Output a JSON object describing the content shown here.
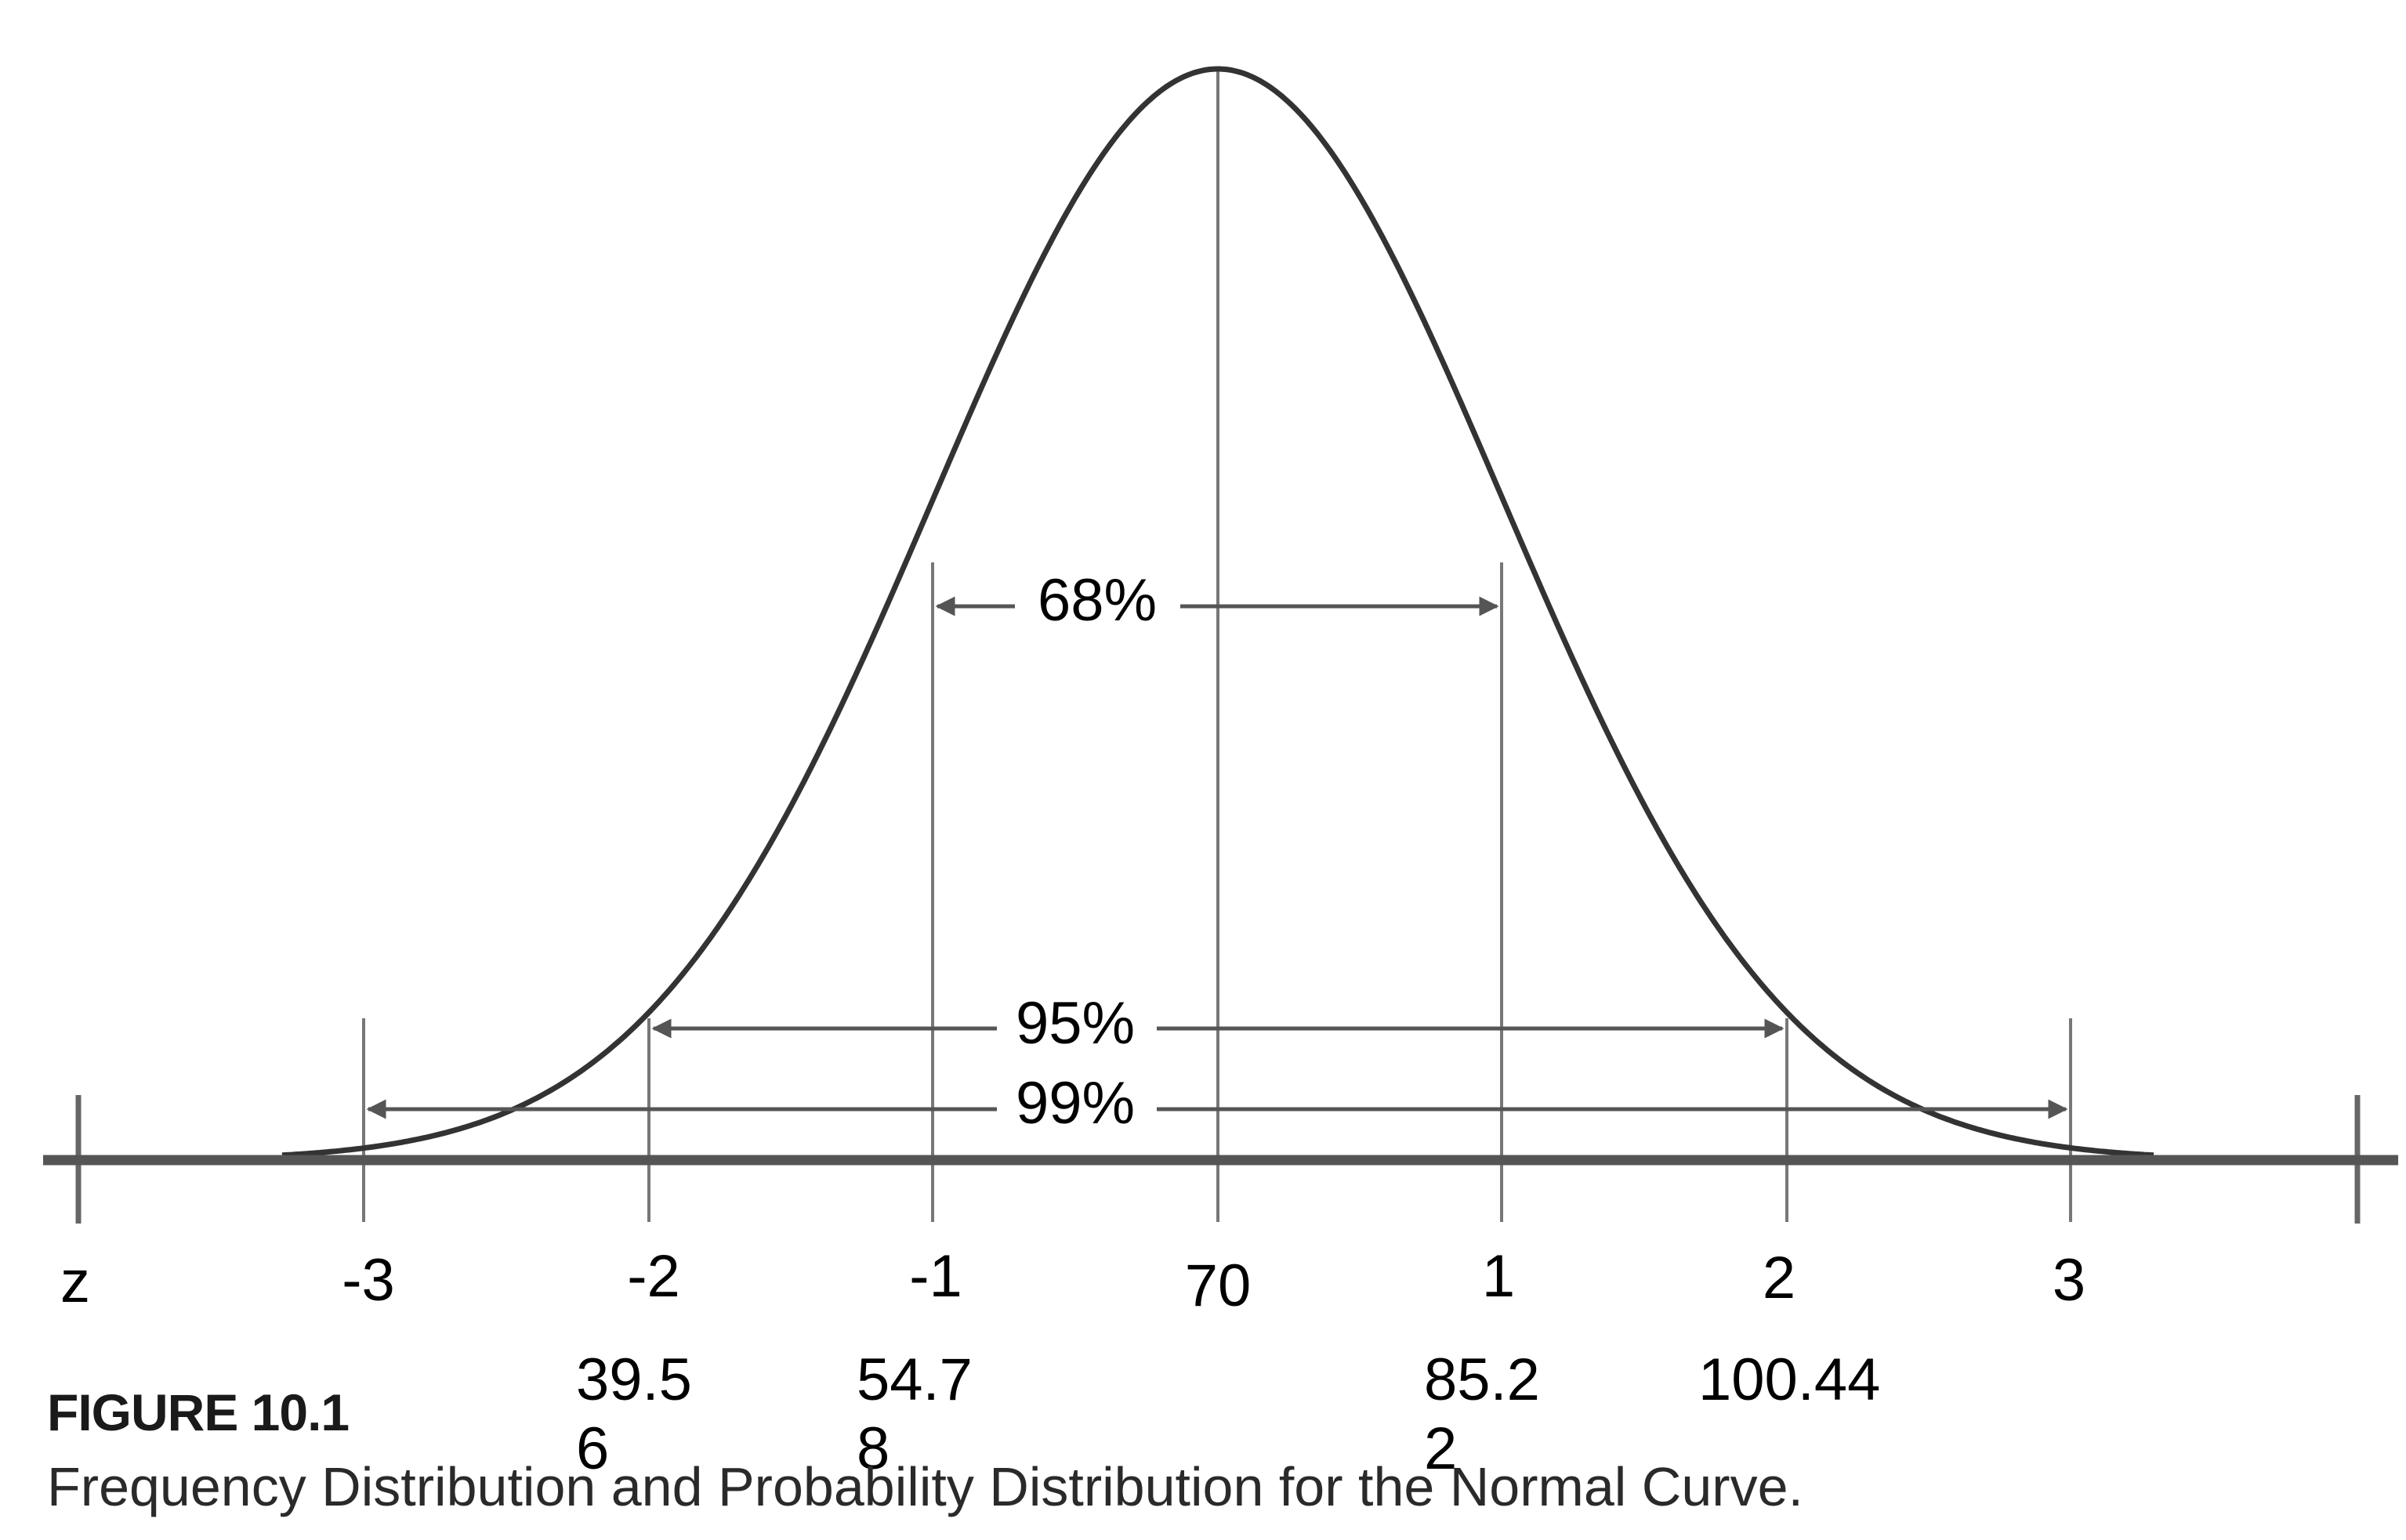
{
  "annotations": {
    "pct68": "68%",
    "pct95": "95%",
    "pct99": "99%"
  },
  "z_axis": {
    "label": "z",
    "ticks": [
      "-3",
      "-2",
      "-1",
      "70",
      "1",
      "2",
      "3"
    ]
  },
  "raw_scores": [
    "39.56",
    "54.78",
    "85.22",
    "100.44"
  ],
  "caption": {
    "title": "FIGURE 10.1",
    "text": "Frequency Distribution and Probability Distribution for the Normal Curve."
  },
  "colors": {
    "curve": "#333333",
    "axis": "#555555",
    "gridline": "#777777",
    "arrow": "#555555",
    "text": "#000000"
  }
}
